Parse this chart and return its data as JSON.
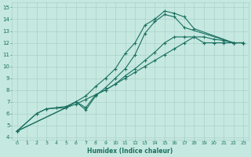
{
  "title": "",
  "xlabel": "Humidex (Indice chaleur)",
  "ylabel": "",
  "bg_color": "#c5e8e0",
  "grid_color": "#a8ccc6",
  "line_color": "#1a7060",
  "xlim": [
    -0.5,
    23.5
  ],
  "ylim": [
    3.8,
    15.4
  ],
  "xticks": [
    0,
    1,
    2,
    3,
    4,
    5,
    6,
    7,
    8,
    9,
    10,
    11,
    12,
    13,
    14,
    15,
    16,
    17,
    18,
    19,
    20,
    21,
    22,
    23
  ],
  "yticks": [
    4,
    5,
    6,
    7,
    8,
    9,
    10,
    11,
    12,
    13,
    14,
    15
  ],
  "series": [
    {
      "x": [
        0,
        2,
        3,
        4,
        5,
        6,
        7,
        8,
        9,
        10,
        11,
        12,
        13,
        14,
        15,
        16,
        17,
        18,
        22,
        23
      ],
      "y": [
        4.5,
        6.0,
        6.4,
        6.5,
        6.6,
        7.0,
        7.5,
        8.3,
        9.0,
        9.8,
        11.1,
        12.0,
        13.5,
        14.0,
        14.7,
        14.5,
        14.2,
        13.2,
        12.0,
        12.0
      ]
    },
    {
      "x": [
        0,
        2,
        3,
        5,
        6,
        7,
        8,
        9,
        10,
        11,
        12,
        13,
        14,
        15,
        16,
        17,
        22,
        23
      ],
      "y": [
        4.5,
        6.0,
        6.4,
        6.5,
        7.0,
        6.3,
        7.5,
        8.2,
        9.0,
        9.8,
        11.0,
        12.8,
        13.8,
        14.4,
        14.2,
        13.3,
        12.0,
        12.0
      ]
    },
    {
      "x": [
        0,
        5,
        6,
        7,
        8,
        9,
        10,
        11,
        12,
        13,
        14,
        15,
        16,
        17,
        18,
        19,
        20,
        21,
        22,
        23
      ],
      "y": [
        4.5,
        6.5,
        6.8,
        7.2,
        7.6,
        8.0,
        8.5,
        9.0,
        9.5,
        10.0,
        10.5,
        11.0,
        11.5,
        12.0,
        12.5,
        12.0,
        12.0,
        12.0,
        12.0,
        12.0
      ]
    },
    {
      "x": [
        0,
        5,
        6,
        7,
        8,
        9,
        10,
        11,
        12,
        13,
        14,
        15,
        16,
        17,
        18,
        19,
        20,
        21,
        22,
        23
      ],
      "y": [
        4.5,
        6.5,
        7.0,
        6.5,
        7.6,
        8.0,
        8.5,
        9.2,
        9.8,
        10.5,
        11.2,
        12.0,
        12.5,
        12.5,
        12.5,
        12.5,
        12.3,
        12.2,
        12.0,
        12.0
      ]
    }
  ]
}
